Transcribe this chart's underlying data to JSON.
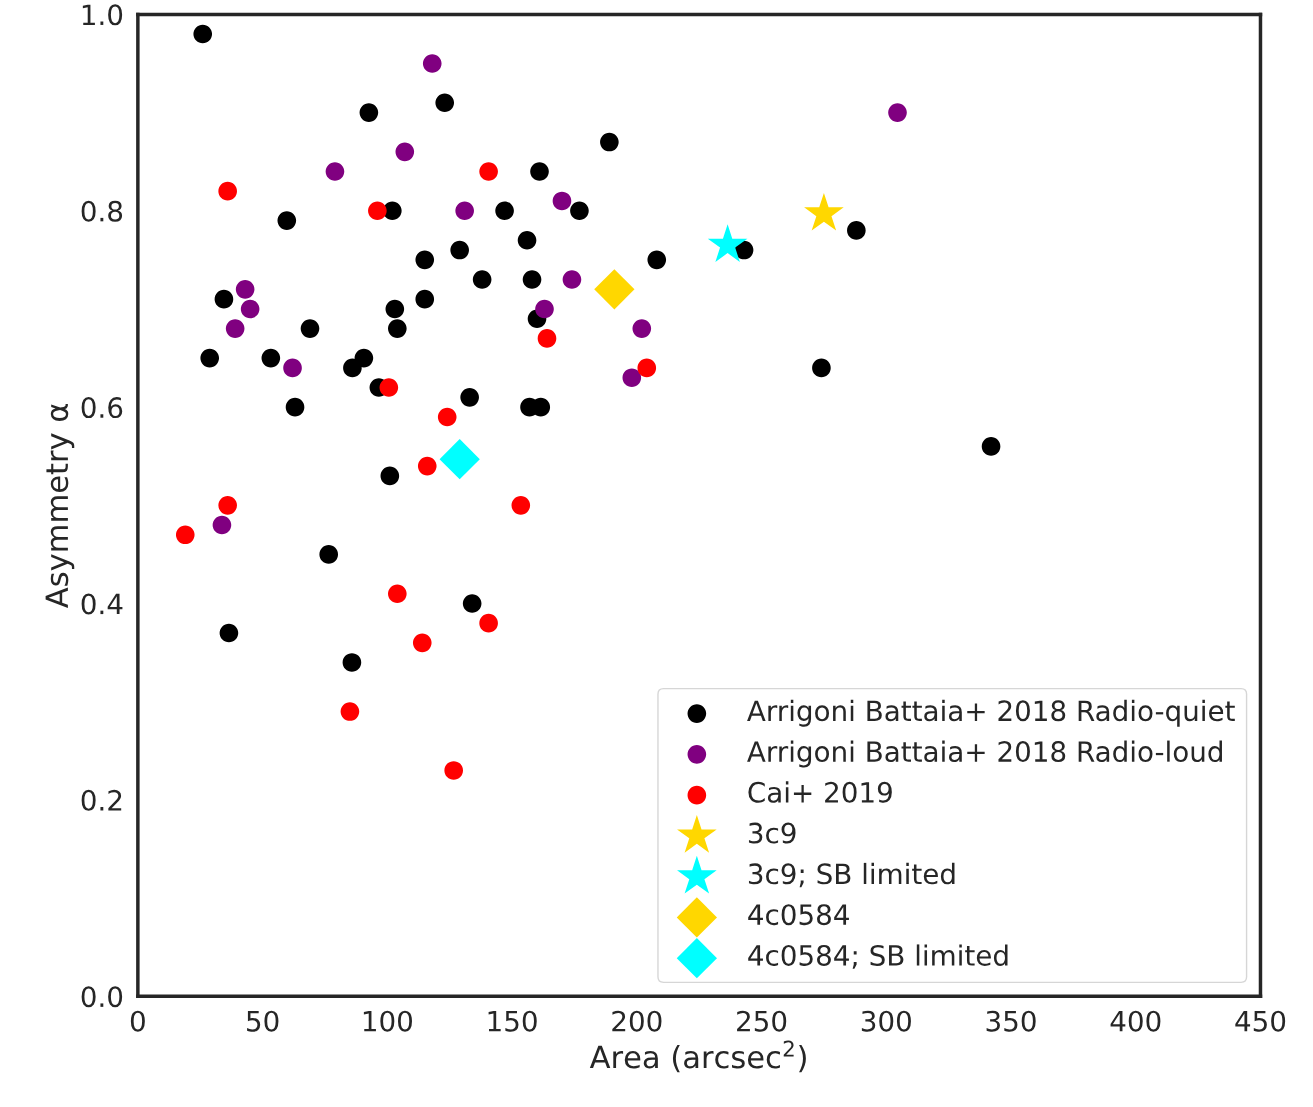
{
  "chart_data": {
    "type": "scatter",
    "xlabel": "Area (arcsec$^{2}$)",
    "ylabel": "Asymmetry α",
    "xlim": [
      0,
      450
    ],
    "ylim": [
      0.0,
      1.0
    ],
    "xticks": [
      0,
      50,
      100,
      150,
      200,
      250,
      300,
      350,
      400,
      450
    ],
    "yticks": [
      {
        "value": 0,
        "label": "0.0"
      },
      0.2,
      0.4,
      0.6,
      0.8,
      {
        "value": 1,
        "label": "1.0"
      }
    ],
    "grid": false,
    "legend": "bottom right",
    "series": [
      {
        "name": "Arrigoni Battaia+ 2018 Radio-quiet",
        "color": "#000000",
        "marker": "circle",
        "x": [
          26,
          92.6,
          123,
          189,
          161,
          102,
          147,
          177,
          59.7,
          156,
          129,
          243,
          288,
          115,
          208,
          138,
          158,
          34.5,
          103,
          115,
          160,
          69,
          104,
          28.8,
          53.3,
          90.6,
          86,
          96.6,
          63,
          133,
          157,
          161.5,
          274,
          342,
          101,
          76.5,
          134,
          36.5,
          85.8
        ],
        "values": [
          0.98,
          0.9,
          0.91,
          0.87,
          0.84,
          0.8,
          0.8,
          0.8,
          0.79,
          0.77,
          0.76,
          0.76,
          0.78,
          0.75,
          0.75,
          0.73,
          0.73,
          0.71,
          0.7,
          0.71,
          0.69,
          0.68,
          0.68,
          0.65,
          0.65,
          0.65,
          0.64,
          0.62,
          0.6,
          0.61,
          0.6,
          0.6,
          0.64,
          0.56,
          0.53,
          0.45,
          0.4,
          0.37,
          0.34
        ]
      },
      {
        "name": "Arrigoni Battaia+ 2018 Radio-loud",
        "color": "#800080",
        "marker": "circle",
        "x": [
          118,
          304.5,
          107,
          79,
          131,
          170,
          174,
          43,
          45,
          163,
          39,
          202,
          62,
          198,
          33.7
        ],
        "values": [
          0.95,
          0.9,
          0.86,
          0.84,
          0.8,
          0.81,
          0.73,
          0.72,
          0.7,
          0.7,
          0.68,
          0.68,
          0.64,
          0.63,
          0.48
        ]
      },
      {
        "name": "Cai+ 2019",
        "color": "#ff0000",
        "marker": "circle",
        "x": [
          36,
          140.6,
          96,
          164,
          204,
          100.6,
          124,
          116,
          36,
          153.5,
          19,
          104,
          140.6,
          114,
          85,
          126.6
        ],
        "values": [
          0.82,
          0.84,
          0.8,
          0.67,
          0.64,
          0.62,
          0.59,
          0.54,
          0.5,
          0.5,
          0.47,
          0.41,
          0.38,
          0.36,
          0.29,
          0.23
        ]
      },
      {
        "name": "3c9",
        "color": "#ffd700",
        "marker": "star",
        "x": [
          275
        ],
        "values": [
          0.797
        ]
      },
      {
        "name": "3c9; SB limited",
        "color": "#00ffff",
        "marker": "star",
        "x": [
          236.4
        ],
        "values": [
          0.765
        ]
      },
      {
        "name": "4c0584",
        "color": "#ffd700",
        "marker": "diamond",
        "x": [
          191
        ],
        "values": [
          0.72
        ]
      },
      {
        "name": "4c0584; SB limited",
        "color": "#00ffff",
        "marker": "diamond",
        "x": [
          129
        ],
        "values": [
          0.547
        ]
      }
    ]
  }
}
